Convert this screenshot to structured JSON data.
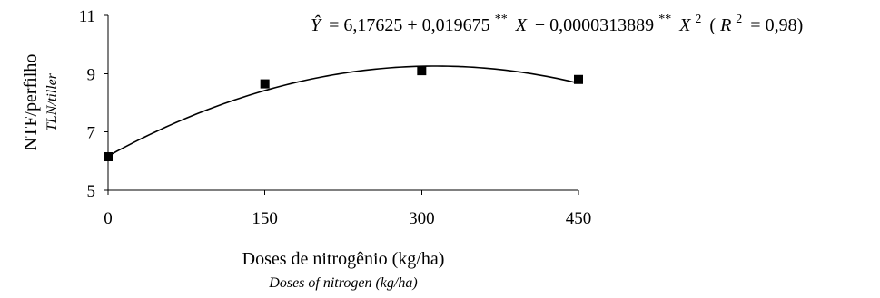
{
  "chart_data": {
    "type": "scatter",
    "xlabel": "Doses de nitrogênio (kg/ha)",
    "xlabel_en": "Doses of nitrogen (kg/ha)",
    "ylabel": "NTF/perfilho",
    "ylabel_en": "TLN/tiller",
    "x_ticks": [
      "0",
      "150",
      "300",
      "450"
    ],
    "y_ticks": [
      "5",
      "7",
      "9",
      "11"
    ],
    "xlim": [
      0,
      450
    ],
    "ylim": [
      5,
      11
    ],
    "grid": false,
    "points": [
      {
        "x": 0,
        "y": 6.15
      },
      {
        "x": 150,
        "y": 8.65
      },
      {
        "x": 300,
        "y": 9.1
      },
      {
        "x": 450,
        "y": 8.8
      }
    ],
    "fit": {
      "type": "quadratic",
      "b0": 6.17625,
      "b1": 0.019675,
      "b2": -3.13889e-05,
      "equation": {
        "yhat": "Ŷ",
        "lhs": "= 6,17625 + 0,019675",
        "sig1": "**",
        "x1": "X",
        "mid": "− 0,0000313889",
        "sig2": "**",
        "x2": "X",
        "exp": "2",
        "r_open": "(",
        "r": "R",
        "r_exp": "2",
        "r_val": "= 0,98)"
      }
    }
  }
}
